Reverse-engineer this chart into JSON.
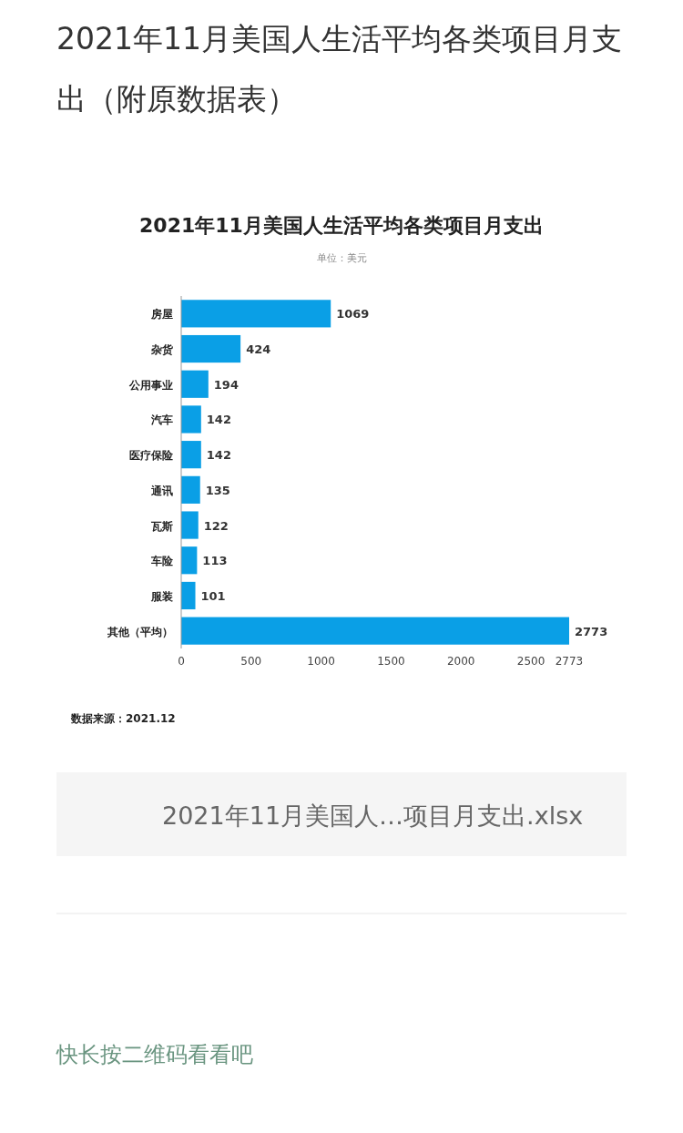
{
  "chart_data": {
    "type": "bar",
    "orientation": "horizontal",
    "title": "2021年11月美国人生活平均各类项目月支出（附原数据表）",
    "subtitle": "2021年11月美国人生活平均各类项目月支出",
    "categories": [
      "房屋",
      "杂货",
      "公用事业",
      "汽车",
      "医疗保险",
      "通讯",
      "瓦斯",
      "车险",
      "服装",
      "其他（平均）"
    ],
    "values": [
      1069,
      424,
      194,
      142,
      142,
      135,
      122,
      113,
      101,
      2773
    ],
    "color": "#0a9fe6",
    "xlim": [
      0,
      2773
    ],
    "xticks": [
      0,
      500,
      1000,
      1500,
      2000,
      2500,
      2773
    ],
    "data_labels": true,
    "annotations": [
      "单位：美元",
      "数据来源：2021.12",
      "2021年11月美国人…项目月支出.xlsx",
      "快长按二维码看看吧"
    ]
  }
}
